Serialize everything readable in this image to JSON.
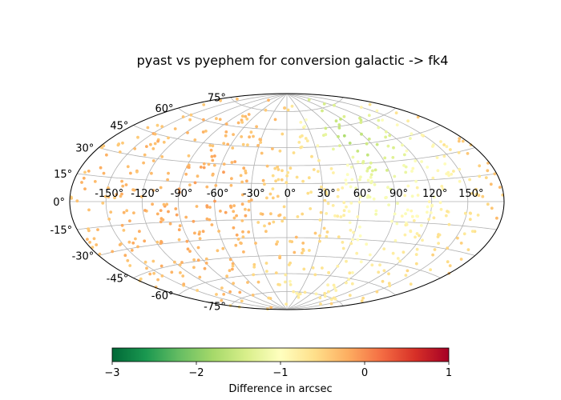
{
  "chart_data": {
    "type": "scatter",
    "projection": "aitoff",
    "title": "pyast vs pyephem for conversion galactic -> fk4",
    "lon_tick_labels": [
      "-150°",
      "-120°",
      "-90°",
      "-60°",
      "-30°",
      "0°",
      "30°",
      "60°",
      "90°",
      "120°",
      "150°"
    ],
    "lon_ticks": [
      -150,
      -120,
      -90,
      -60,
      -30,
      0,
      30,
      60,
      90,
      120,
      150
    ],
    "lat_tick_labels": [
      "75°",
      "60°",
      "45°",
      "30°",
      "15°",
      "0°",
      "-15°",
      "-30°",
      "-45°",
      "-60°",
      "-75°"
    ],
    "lat_ticks": [
      75,
      60,
      45,
      30,
      15,
      0,
      -15,
      -30,
      -45,
      -60,
      -75
    ],
    "grid": true,
    "colormap": "RdYlGn_r",
    "colorbar": {
      "label": "Difference in arcsec",
      "range": [
        -3,
        1
      ],
      "tick_labels": [
        "−3",
        "−2",
        "−1",
        "0",
        "1"
      ],
      "ticks": [
        -3,
        -2,
        -1,
        0,
        1
      ],
      "colors": [
        "#006837",
        "#1a9850",
        "#66bd63",
        "#a6d96a",
        "#d9ef8b",
        "#ffffbf",
        "#fee08b",
        "#fdae61",
        "#f46d43",
        "#d73027",
        "#a50026"
      ]
    },
    "sample_points": [
      {
        "lon": -150,
        "lat": 10,
        "value": -0.3
      },
      {
        "lon": -120,
        "lat": 40,
        "value": -0.3
      },
      {
        "lon": -90,
        "lat": -20,
        "value": -0.25
      },
      {
        "lon": -60,
        "lat": 5,
        "value": -0.2
      },
      {
        "lon": -30,
        "lat": 60,
        "value": -0.35
      },
      {
        "lon": 0,
        "lat": -40,
        "value": -0.4
      },
      {
        "lon": 30,
        "lat": 20,
        "value": -0.6
      },
      {
        "lon": 60,
        "lat": 30,
        "value": -1.1
      },
      {
        "lon": 90,
        "lat": 40,
        "value": -1.4
      },
      {
        "lon": 120,
        "lat": 10,
        "value": -0.9
      },
      {
        "lon": 150,
        "lat": -20,
        "value": -0.6
      },
      {
        "lon": 75,
        "lat": 45,
        "value": -1.7
      },
      {
        "lon": -165,
        "lat": -10,
        "value": -0.3
      },
      {
        "lon": 10,
        "lat": -70,
        "value": -0.8
      }
    ]
  }
}
